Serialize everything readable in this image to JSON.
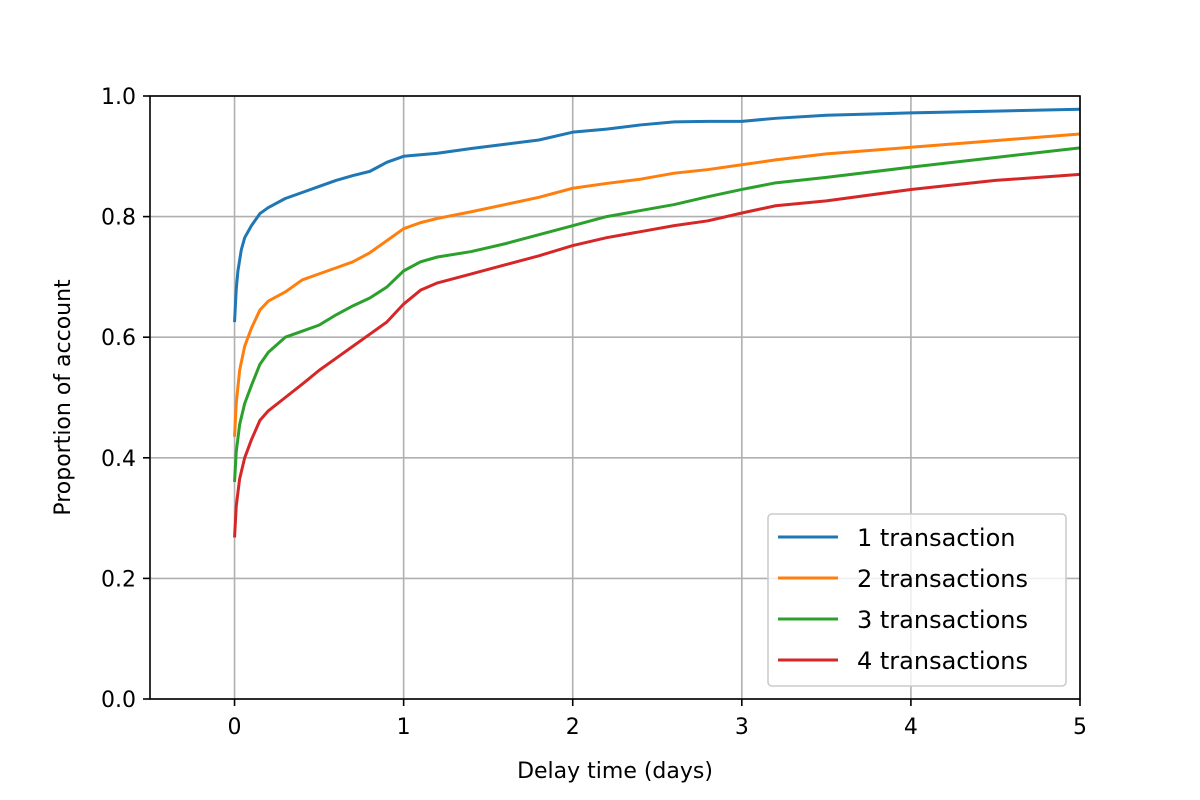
{
  "chart_data": {
    "type": "line",
    "title": "",
    "xlabel": "Delay time (days)",
    "ylabel": "Proportion of account",
    "xlim": [
      -0.5,
      5
    ],
    "ylim": [
      0.0,
      1.0
    ],
    "xticks": [
      0,
      1,
      2,
      3,
      4,
      5
    ],
    "xtick_labels": [
      "0",
      "1",
      "2",
      "3",
      "4",
      "5"
    ],
    "yticks": [
      0.0,
      0.2,
      0.4,
      0.6,
      0.8,
      1.0
    ],
    "ytick_labels": [
      "0.0",
      "0.2",
      "0.4",
      "0.6",
      "0.8",
      "1.0"
    ],
    "grid": true,
    "legend_position": "lower-right",
    "series": [
      {
        "name": "1 transaction",
        "color": "#1f77b4",
        "x": [
          0,
          0.01,
          0.02,
          0.04,
          0.06,
          0.1,
          0.15,
          0.2,
          0.3,
          0.4,
          0.5,
          0.6,
          0.7,
          0.8,
          0.9,
          1.0,
          1.2,
          1.4,
          1.6,
          1.8,
          2.0,
          2.2,
          2.4,
          2.6,
          2.8,
          3.0,
          3.2,
          3.5,
          4.0,
          4.5,
          5.0
        ],
        "y": [
          0.625,
          0.68,
          0.71,
          0.745,
          0.765,
          0.785,
          0.805,
          0.815,
          0.83,
          0.84,
          0.85,
          0.86,
          0.868,
          0.875,
          0.89,
          0.9,
          0.905,
          0.913,
          0.92,
          0.927,
          0.94,
          0.945,
          0.952,
          0.957,
          0.958,
          0.958,
          0.963,
          0.968,
          0.972,
          0.975,
          0.978
        ]
      },
      {
        "name": "2 transactions",
        "color": "#ff7f0e",
        "x": [
          0,
          0.01,
          0.03,
          0.06,
          0.1,
          0.15,
          0.2,
          0.3,
          0.4,
          0.5,
          0.6,
          0.7,
          0.8,
          0.9,
          1.0,
          1.1,
          1.2,
          1.4,
          1.6,
          1.8,
          2.0,
          2.2,
          2.4,
          2.6,
          2.8,
          3.0,
          3.2,
          3.5,
          4.0,
          4.5,
          5.0
        ],
        "y": [
          0.435,
          0.49,
          0.545,
          0.585,
          0.615,
          0.645,
          0.66,
          0.675,
          0.695,
          0.705,
          0.715,
          0.725,
          0.74,
          0.76,
          0.78,
          0.79,
          0.797,
          0.808,
          0.82,
          0.832,
          0.847,
          0.855,
          0.862,
          0.872,
          0.878,
          0.886,
          0.894,
          0.904,
          0.915,
          0.926,
          0.937
        ]
      },
      {
        "name": "3 transactions",
        "color": "#2ca02c",
        "x": [
          0,
          0.01,
          0.03,
          0.06,
          0.1,
          0.15,
          0.2,
          0.3,
          0.4,
          0.5,
          0.6,
          0.7,
          0.8,
          0.9,
          1.0,
          1.1,
          1.2,
          1.4,
          1.6,
          1.8,
          2.0,
          2.2,
          2.4,
          2.6,
          2.8,
          3.0,
          3.2,
          3.5,
          4.0,
          4.5,
          5.0
        ],
        "y": [
          0.36,
          0.41,
          0.455,
          0.49,
          0.52,
          0.555,
          0.575,
          0.6,
          0.61,
          0.62,
          0.637,
          0.652,
          0.665,
          0.683,
          0.71,
          0.725,
          0.733,
          0.742,
          0.755,
          0.77,
          0.785,
          0.8,
          0.81,
          0.82,
          0.833,
          0.845,
          0.856,
          0.865,
          0.882,
          0.898,
          0.914
        ]
      },
      {
        "name": "4 transactions",
        "color": "#d62728",
        "x": [
          0,
          0.01,
          0.03,
          0.06,
          0.1,
          0.15,
          0.2,
          0.3,
          0.4,
          0.5,
          0.6,
          0.7,
          0.8,
          0.9,
          1.0,
          1.1,
          1.2,
          1.4,
          1.6,
          1.8,
          2.0,
          2.2,
          2.4,
          2.6,
          2.8,
          3.0,
          3.2,
          3.5,
          4.0,
          4.5,
          5.0
        ],
        "y": [
          0.268,
          0.32,
          0.365,
          0.4,
          0.43,
          0.462,
          0.478,
          0.5,
          0.522,
          0.545,
          0.565,
          0.585,
          0.605,
          0.625,
          0.655,
          0.678,
          0.69,
          0.705,
          0.72,
          0.735,
          0.752,
          0.765,
          0.775,
          0.785,
          0.793,
          0.806,
          0.818,
          0.826,
          0.845,
          0.86,
          0.87
        ]
      }
    ]
  }
}
